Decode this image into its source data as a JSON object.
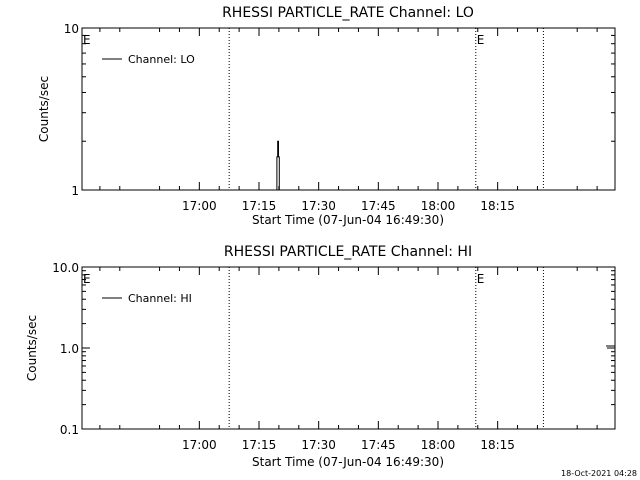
{
  "chart_data": [
    {
      "type": "line",
      "title": "RHESSI PARTICLE_RATE Channel: LO",
      "xlabel": "Start Time (07-Jun-04 16:49:30)",
      "ylabel": "Counts/sec",
      "yscale": "log",
      "ylim": [
        1,
        10
      ],
      "yticks": [
        "1",
        "10"
      ],
      "xlim_minutes": [
        -29.5,
        104.5
      ],
      "xticks": [
        "17:00",
        "17:15",
        "17:30",
        "17:45",
        "18:00",
        "18:15"
      ],
      "xtick_minutes": [
        0,
        15,
        30,
        45,
        60,
        75
      ],
      "grid": false,
      "legend_position": "top-left",
      "series": [
        {
          "name": "Channel: LO",
          "color": "#000000",
          "points": [
            {
              "x": 19.5,
              "y": 1.0
            },
            {
              "x": 19.5,
              "y": 1.6
            },
            {
              "x": 19.7,
              "y": 1.6
            },
            {
              "x": 19.7,
              "y": 2.0
            },
            {
              "x": 19.9,
              "y": 2.0
            },
            {
              "x": 19.9,
              "y": 1.6
            },
            {
              "x": 20.1,
              "y": 1.6
            },
            {
              "x": 20.1,
              "y": 1.0
            }
          ]
        }
      ],
      "vlines_minutes": [
        7.5,
        69.5,
        86.5
      ],
      "annotations": [
        {
          "text": "E",
          "x": -29.5
        },
        {
          "text": "E",
          "x": 69.5
        }
      ]
    },
    {
      "type": "line",
      "title": "RHESSI PARTICLE_RATE Channel: HI",
      "xlabel": "Start Time (07-Jun-04 16:49:30)",
      "ylabel": "Counts/sec",
      "yscale": "log",
      "ylim": [
        0.1,
        10
      ],
      "yticks": [
        "0.1",
        "1.0",
        "10.0"
      ],
      "xlim_minutes": [
        -29.5,
        104.5
      ],
      "xticks": [
        "17:00",
        "17:15",
        "17:30",
        "17:45",
        "18:00",
        "18:15"
      ],
      "xtick_minutes": [
        0,
        15,
        30,
        45,
        60,
        75
      ],
      "grid": false,
      "legend_position": "top-left",
      "series": [
        {
          "name": "Channel: HI",
          "color": "#000000",
          "points": []
        }
      ],
      "vlines_minutes": [
        7.5,
        69.5,
        86.5
      ],
      "annotations": [
        {
          "text": "E",
          "x": -29.5
        },
        {
          "text": "E",
          "x": 69.5
        }
      ]
    }
  ],
  "footer": {
    "timestamp": "18-Oct-2021 04:28"
  }
}
